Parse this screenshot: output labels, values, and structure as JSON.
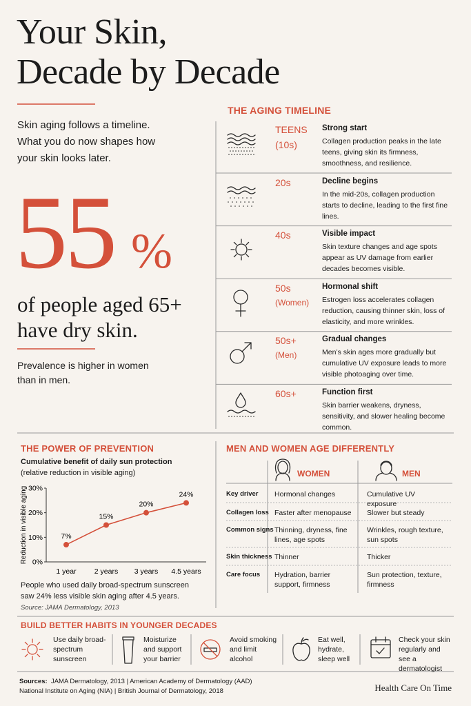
{
  "header": {
    "title_line1": "Your Skin,",
    "title_line2": "Decade by Decade",
    "intro": "Skin aging follows a timeline. What you do now shapes how your skin looks later."
  },
  "stat": {
    "number": "55",
    "unit": "%",
    "caption": "of people aged 65+ have dry skin.",
    "note": "Prevalence is higher in women than in men."
  },
  "timeline": {
    "title": "THE AGING TIMELINE",
    "items": [
      {
        "stage": "TEENS",
        "sub": "(10s)",
        "heading": "Strong start",
        "text": "Collagen production peaks in the late teens, giving skin its firmness, smoothness, and resilience."
      },
      {
        "stage": "20s",
        "heading": "Decline begins",
        "text": "In the mid-20s, collagen production starts to decline, leading to the first fine lines."
      },
      {
        "stage": "40s",
        "heading": "Visible impact",
        "text": "Skin texture changes and age spots appear as UV damage from earlier decades becomes visible."
      },
      {
        "stage": "50s",
        "sub": "(Women)",
        "heading": "Hormonal shift",
        "text": "Estrogen loss accelerates collagen reduction, causing thinner skin, loss of elasticity, and more wrinkles."
      },
      {
        "stage": "50s+",
        "sub": "(Men)",
        "heading": "Gradual changes",
        "text": "Men’s skin ages more gradually but cumulative UV exposure leads to more visible photoaging over time."
      },
      {
        "stage": "60s+",
        "heading": "Function first",
        "text": "Skin barrier weakens, dryness, sensitivity, and slower healing become common."
      }
    ]
  },
  "prevention": {
    "title": "THE POWER OF PREVENTION",
    "note": "People who used daily broad-spectrum sunscreen saw 24% less visible skin aging after 4.5 years.",
    "source": "Source: JAMA Dermatology, 2013"
  },
  "chart_data": {
    "type": "line",
    "title": "Cumulative benefit of daily sun protection",
    "subtitle": "(relative reduction in visible aging)",
    "y_label": "Reduction in visible aging",
    "categories": [
      "1 year",
      "2 years",
      "3 years",
      "4.5 years"
    ],
    "values": [
      7,
      15,
      20,
      24
    ],
    "value_labels": [
      "7%",
      "15%",
      "20%",
      "24%"
    ],
    "color": "#d4503a",
    "ylim": [
      0,
      30
    ],
    "yticks": [
      {
        "value": 0,
        "label": "0%"
      },
      {
        "value": 10,
        "label": "10%"
      },
      {
        "value": 20,
        "label": "20%"
      },
      {
        "value": 30,
        "label": "30%"
      }
    ]
  },
  "comparison": {
    "title": "MEN AND WOMEN AGE DIFFERENTLY",
    "columns": [
      "WOMEN",
      "MEN"
    ],
    "rows": [
      {
        "label": "Key driver",
        "women": "Hormonal changes",
        "men": "Cumulative UV exposure"
      },
      {
        "label": "Collagen loss",
        "women": "Faster after menopause",
        "men": "Slower but steady"
      },
      {
        "label": "Common signs",
        "women": "Thinning, dryness, fine lines, age spots",
        "men": "Wrinkles, rough texture, sun spots"
      },
      {
        "label": "Skin thickness",
        "women": "Thinner",
        "men": "Thicker"
      },
      {
        "label": "Care focus",
        "women": "Hydration, barrier support, firmness",
        "men": "Sun protection, texture, firmness"
      }
    ]
  },
  "habits": {
    "title": "BUILD BETTER HABITS IN YOUNGER DECADES",
    "items": [
      "Use daily broad-spectrum sunscreen",
      "Moisturize and support your barrier",
      "Avoid smoking and limit alcohol",
      "Eat well, hydrate, sleep well",
      "Check your skin regularly and see a dermatologist"
    ]
  },
  "footer": {
    "sources_label": "Sources:",
    "sources_line1": "JAMA Dermatology, 2013  |  American Academy of Dermatology (AAD)",
    "sources_line2": "National Institute on Aging (NIA)  |  British Journal of Dermatology, 2018",
    "brand": "Health Care On Time"
  }
}
